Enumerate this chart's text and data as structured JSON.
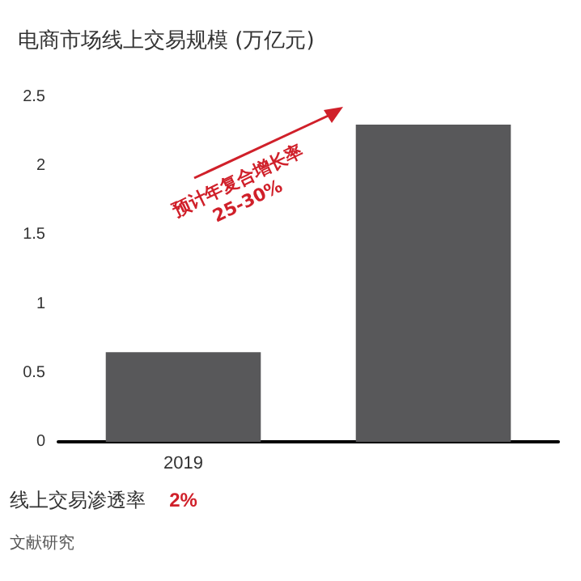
{
  "chart_data": {
    "type": "bar",
    "title": "电商市场线上交易规模 (万亿元)",
    "categories": [
      "2019",
      null
    ],
    "values": [
      0.65,
      2.3
    ],
    "color": "#58585a",
    "ylim": [
      0,
      2.5
    ],
    "yticks": [
      0,
      0.5,
      1,
      1.5,
      2,
      2.5
    ],
    "grid": false,
    "annotations": [
      {
        "text": "预计年复合增长率 25-30%"
      },
      {
        "text": "线上交易渗透率"
      },
      {
        "text": "2%"
      },
      {
        "text": "文献研究"
      }
    ]
  }
}
